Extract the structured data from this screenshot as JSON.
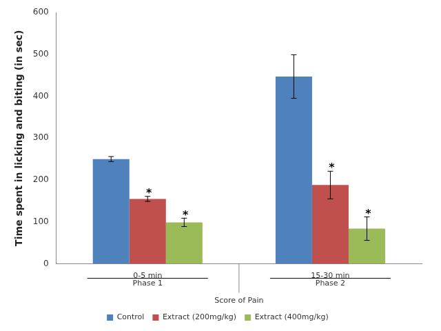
{
  "chart_data": {
    "type": "bar",
    "x_label": "Score of Pain",
    "y_label": "Time spent in licking and biting (in sec)",
    "categories": [
      "0-5 min",
      "15-30 min"
    ],
    "category_groups": [
      "Phase 1",
      "Phase 2"
    ],
    "series": [
      {
        "name": "Control",
        "color": "#4f81bd",
        "values": [
          250,
          447
        ],
        "errors": [
          6,
          52
        ]
      },
      {
        "name": "Extract (200mg/kg)",
        "color": "#c0504d",
        "values": [
          155,
          188
        ],
        "errors": [
          6,
          33
        ],
        "annotations": [
          "*",
          "*"
        ]
      },
      {
        "name": "Extract (400mg/kg)",
        "color": "#9bbb59",
        "values": [
          99,
          84
        ],
        "errors": [
          10,
          28
        ],
        "annotations": [
          "*",
          "*"
        ]
      }
    ],
    "ylim": [
      0,
      600
    ],
    "yticks": [
      0,
      100,
      200,
      300,
      400,
      500,
      600
    ],
    "grid": false,
    "legend": "bottom"
  }
}
